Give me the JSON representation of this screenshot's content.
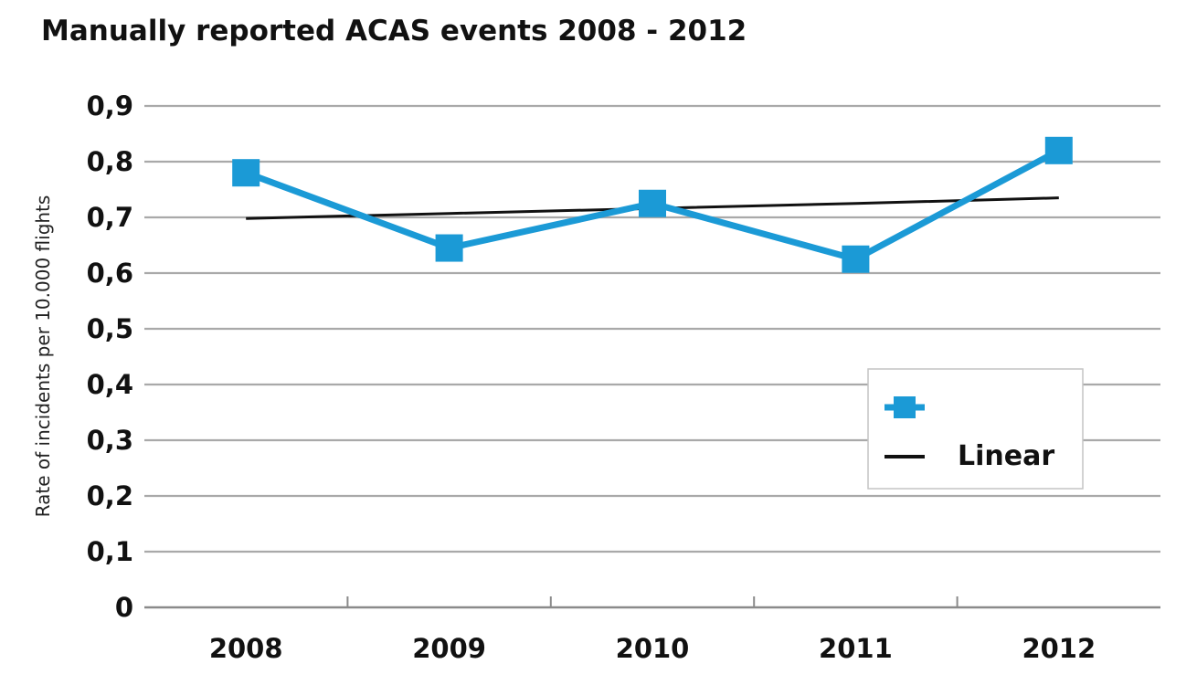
{
  "chart_data": {
    "type": "line",
    "title": "Manually reported ACAS events 2008 - 2012",
    "xlabel": "",
    "ylabel": "Rate of incidents per 10.000 flights",
    "categories": [
      "2008",
      "2009",
      "2010",
      "2011",
      "2012"
    ],
    "series": [
      {
        "name": "",
        "values": [
          0.78,
          0.645,
          0.725,
          0.625,
          0.82
        ],
        "color": "#1b9ad6",
        "marker": "square"
      },
      {
        "name": "Linear",
        "values": [
          0.698,
          0.707,
          0.716,
          0.725,
          0.735
        ],
        "color": "#111111",
        "marker": "none"
      }
    ],
    "yticks": [
      "0",
      "0,1",
      "0,2",
      "0,3",
      "0,4",
      "0,5",
      "0,6",
      "0,7",
      "0,8",
      "0,9"
    ],
    "ylim": [
      0,
      0.9
    ],
    "grid": true,
    "legend": "bottom-right"
  }
}
